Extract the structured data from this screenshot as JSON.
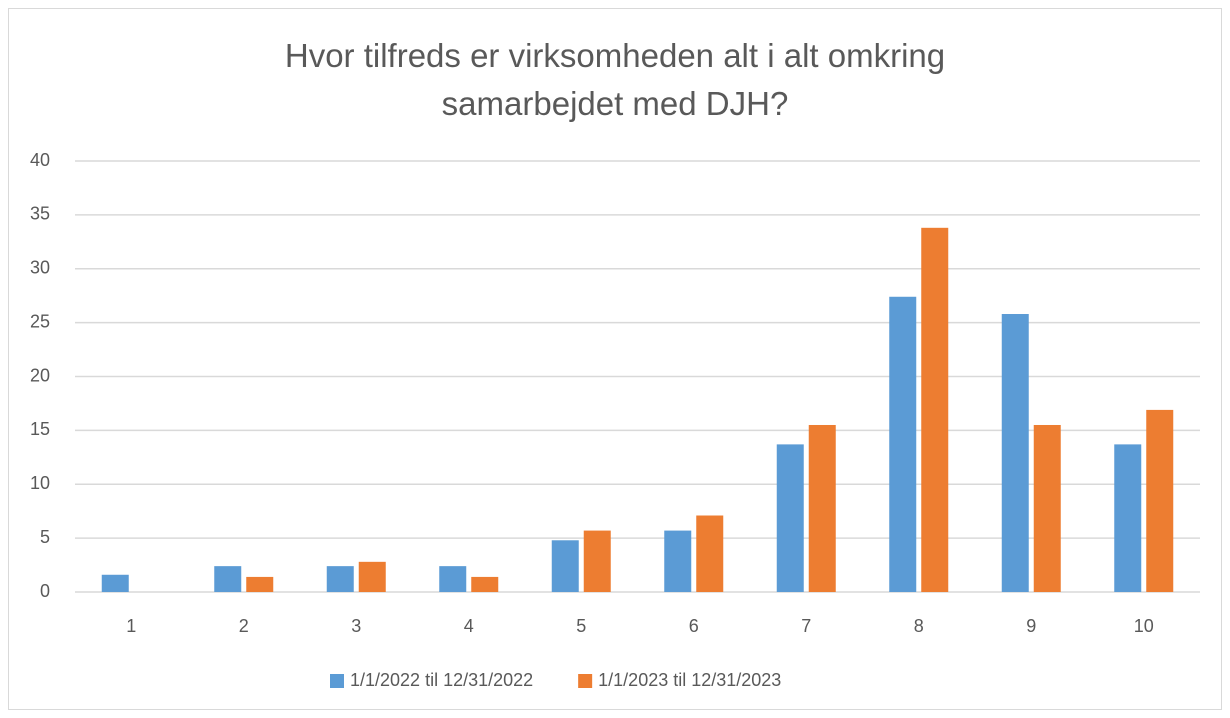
{
  "chart_data": {
    "type": "bar",
    "title": "Hvor tilfreds er virksomheden alt i alt omkring samarbejdet med DJH?",
    "categories": [
      "1",
      "2",
      "3",
      "4",
      "5",
      "6",
      "7",
      "8",
      "9",
      "10"
    ],
    "series": [
      {
        "name": "1/1/2022 til 12/31/2022",
        "color": "#5b9bd5",
        "values": [
          1.6,
          2.4,
          2.4,
          2.4,
          4.8,
          5.7,
          13.7,
          27.4,
          25.8,
          13.7
        ]
      },
      {
        "name": "1/1/2023 til 12/31/2023",
        "color": "#ed7d31",
        "values": [
          0,
          1.4,
          2.8,
          1.4,
          5.7,
          7.1,
          15.5,
          33.8,
          15.5,
          16.9
        ]
      }
    ],
    "ylim": [
      0,
      40
    ],
    "yticks": [
      0,
      5,
      10,
      15,
      20,
      25,
      30,
      35,
      40
    ],
    "grid": true,
    "legend": "bottom"
  }
}
